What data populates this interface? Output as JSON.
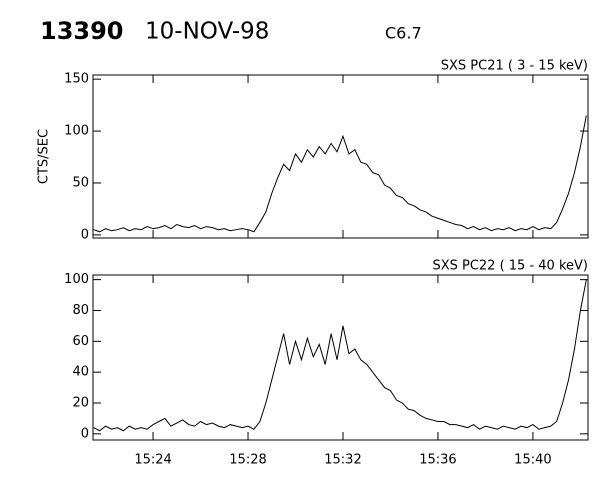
{
  "header": {
    "id": "13390",
    "date": "10-NOV-98",
    "class": "C6.7"
  },
  "chart_data": [
    {
      "type": "line",
      "title": "SXS PC21 (  3 - 15 keV)",
      "ylabel": "CTS/SEC",
      "color": "#000000",
      "x": [
        21.5,
        21.75,
        22,
        22.25,
        22.5,
        22.75,
        23,
        23.25,
        23.5,
        23.75,
        24,
        24.25,
        24.5,
        24.75,
        25,
        25.25,
        25.5,
        25.75,
        26,
        26.25,
        26.5,
        26.75,
        27,
        27.25,
        27.5,
        27.75,
        28,
        28.25,
        28.5,
        28.75,
        29,
        29.25,
        29.5,
        29.75,
        30,
        30.25,
        30.5,
        30.75,
        31,
        31.25,
        31.5,
        31.75,
        32,
        32.25,
        32.5,
        32.75,
        33,
        33.25,
        33.5,
        33.75,
        34,
        34.25,
        34.5,
        34.75,
        35,
        35.25,
        35.5,
        35.75,
        36,
        36.25,
        36.5,
        36.75,
        37,
        37.25,
        37.5,
        37.75,
        38,
        38.25,
        38.5,
        38.75,
        39,
        39.25,
        39.5,
        39.75,
        40,
        40.25,
        40.5,
        40.75,
        41,
        41.25,
        41.5,
        41.75,
        42,
        42.25
      ],
      "values": [
        5,
        3,
        6,
        4,
        5,
        7,
        4,
        6,
        5,
        8,
        6,
        7,
        9,
        6,
        10,
        8,
        7,
        9,
        6,
        8,
        7,
        5,
        6,
        4,
        5,
        6,
        5,
        3,
        12,
        22,
        40,
        55,
        68,
        62,
        78,
        70,
        82,
        75,
        85,
        78,
        88,
        80,
        95,
        78,
        82,
        70,
        68,
        60,
        58,
        48,
        45,
        38,
        36,
        30,
        28,
        24,
        22,
        18,
        16,
        14,
        12,
        10,
        9,
        6,
        8,
        5,
        7,
        4,
        6,
        5,
        7,
        4,
        6,
        5,
        8,
        5,
        7,
        6,
        12,
        25,
        40,
        60,
        85,
        115
      ],
      "xlim": [
        21.47,
        42.32
      ],
      "xticks": [
        24,
        28,
        32,
        36,
        40
      ],
      "ylim": [
        -3,
        154
      ],
      "yticks": [
        0,
        50,
        100,
        150
      ]
    },
    {
      "type": "line",
      "title": "SXS PC22 ( 15 - 40 keV)",
      "color": "#000000",
      "x": [
        21.5,
        21.75,
        22,
        22.25,
        22.5,
        22.75,
        23,
        23.25,
        23.5,
        23.75,
        24,
        24.25,
        24.5,
        24.75,
        25,
        25.25,
        25.5,
        25.75,
        26,
        26.25,
        26.5,
        26.75,
        27,
        27.25,
        27.5,
        27.75,
        28,
        28.25,
        28.5,
        28.75,
        29,
        29.25,
        29.5,
        29.75,
        30,
        30.25,
        30.5,
        30.75,
        31,
        31.25,
        31.5,
        31.75,
        32,
        32.25,
        32.5,
        32.75,
        33,
        33.25,
        33.5,
        33.75,
        34,
        34.25,
        34.5,
        34.75,
        35,
        35.25,
        35.5,
        35.75,
        36,
        36.25,
        36.5,
        36.75,
        37,
        37.25,
        37.5,
        37.75,
        38,
        38.25,
        38.5,
        38.75,
        39,
        39.25,
        39.5,
        39.75,
        40,
        40.25,
        40.5,
        40.75,
        41,
        41.25,
        41.5,
        41.75,
        42,
        42.25
      ],
      "values": [
        4,
        2,
        5,
        3,
        4,
        2,
        5,
        3,
        4,
        3,
        6,
        8,
        10,
        5,
        7,
        9,
        6,
        5,
        8,
        6,
        7,
        5,
        4,
        6,
        5,
        4,
        5,
        3,
        8,
        20,
        35,
        50,
        65,
        45,
        60,
        48,
        62,
        50,
        58,
        45,
        65,
        48,
        70,
        52,
        55,
        48,
        45,
        40,
        35,
        30,
        28,
        22,
        20,
        16,
        15,
        12,
        10,
        9,
        8,
        8,
        6,
        6,
        5,
        4,
        6,
        3,
        5,
        4,
        3,
        5,
        4,
        3,
        5,
        4,
        6,
        3,
        4,
        5,
        8,
        20,
        35,
        55,
        80,
        100
      ],
      "xlim": [
        21.47,
        42.32
      ],
      "xticks": [
        {
          "value": 24,
          "label": "15:24"
        },
        {
          "value": 28,
          "label": "15:28"
        },
        {
          "value": 32,
          "label": "15:32"
        },
        {
          "value": 36,
          "label": "15:36"
        },
        {
          "value": 40,
          "label": "15:40"
        }
      ],
      "ylim": [
        -4,
        103
      ],
      "yticks": [
        0,
        20,
        40,
        60,
        80,
        100
      ]
    }
  ]
}
